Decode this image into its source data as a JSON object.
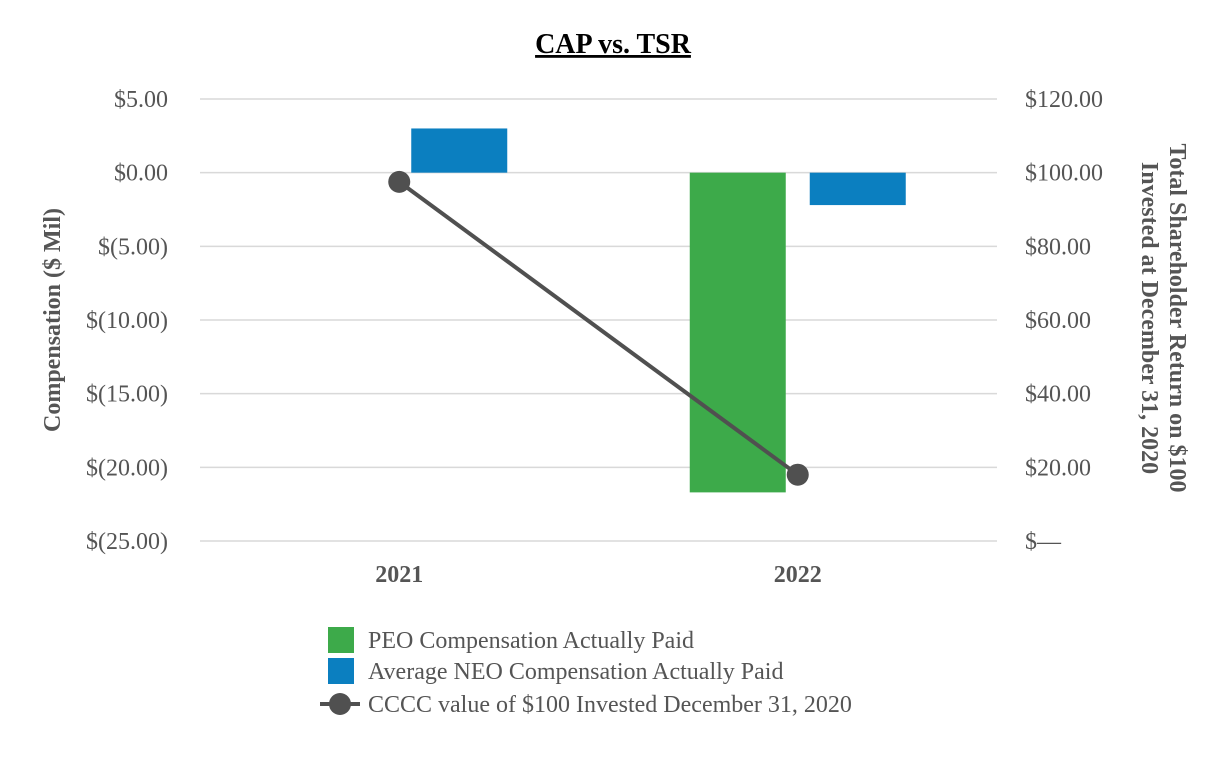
{
  "chart_data": {
    "type": "bar",
    "title": "CAP vs. TSR",
    "categories": [
      "2021",
      "2022"
    ],
    "y_left": {
      "label": "Compensation ($ Mil)",
      "ylim": [
        -25,
        5
      ],
      "ticks": [
        5,
        0,
        -5,
        -10,
        -15,
        -20,
        -25
      ],
      "tick_labels": [
        "$5.00",
        "$0.00",
        "$(5.00)",
        "$(10.00)",
        "$(15.00)",
        "$(20.00)",
        "$(25.00)"
      ]
    },
    "y_right": {
      "label_lines": [
        "Total Shareholder Return on $100",
        "Invested at December 31, 2020"
      ],
      "ylim": [
        0,
        120
      ],
      "ticks": [
        120,
        100,
        80,
        60,
        40,
        20,
        0
      ],
      "tick_labels": [
        "$120.00",
        "$100.00",
        "$80.00",
        "$60.00",
        "$40.00",
        "$20.00",
        "$—"
      ]
    },
    "series": [
      {
        "name": "PEO Compensation Actually Paid",
        "kind": "bar",
        "axis": "left",
        "color": "#3daa4a",
        "values": [
          null,
          -21.7
        ]
      },
      {
        "name": "Average NEO Compensation Actually Paid",
        "kind": "bar",
        "axis": "left",
        "color": "#0b7fc0",
        "values": [
          3.0,
          -2.2
        ]
      },
      {
        "name": "CCCC value of $100 Invested December 31, 2020",
        "kind": "line",
        "axis": "right",
        "color": "#505050",
        "values": [
          97.5,
          18.0
        ]
      }
    ],
    "grid": true,
    "legend": "bottom"
  }
}
